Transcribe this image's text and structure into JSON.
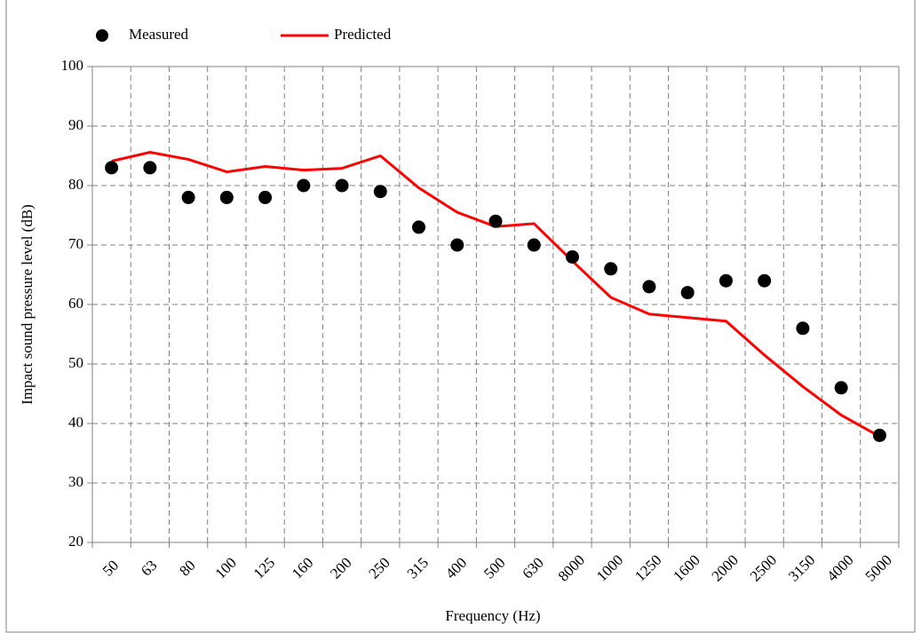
{
  "chart_data": {
    "type": "line",
    "x_label": "Frequency (Hz)",
    "y_label": "Impact sound pressure level (dB)",
    "categories": [
      "50",
      "63",
      "80",
      "100",
      "125",
      "160",
      "200",
      "250",
      "315",
      "400",
      "500",
      "630",
      "8000",
      "1000",
      "1250",
      "1600",
      "2000",
      "2500",
      "3150",
      "4000",
      "5000"
    ],
    "series": [
      {
        "name": "Measured",
        "color": "#000000",
        "marker": "circle",
        "values": [
          83,
          83,
          78,
          78,
          78,
          80,
          80,
          79,
          73,
          70,
          74,
          70,
          68,
          66,
          63,
          62,
          64,
          64,
          56,
          46,
          38
        ]
      },
      {
        "name": "Predicted",
        "color": "#ff0000",
        "marker": "line",
        "values": [
          84.1,
          85.6,
          84.4,
          82.3,
          83.2,
          82.6,
          82.9,
          85,
          79.6,
          75.5,
          73.1,
          73.6,
          67.3,
          61.2,
          58.4,
          57.8,
          57.2,
          51.5,
          46.2,
          41.4,
          37.8
        ]
      }
    ],
    "ylim": [
      20,
      100
    ],
    "yticks": [
      20,
      30,
      40,
      50,
      60,
      70,
      80,
      90,
      100
    ],
    "grid": true,
    "legend": "top-left"
  }
}
